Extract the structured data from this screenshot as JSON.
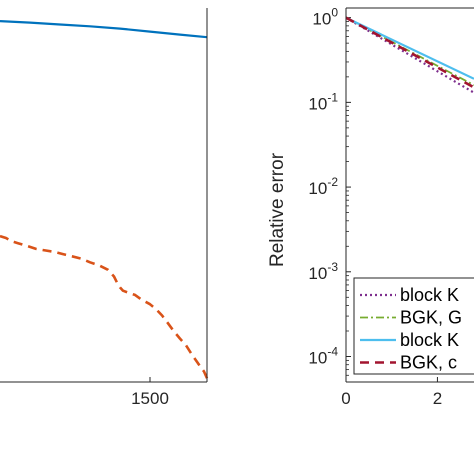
{
  "chart_data": [
    {
      "type": "line",
      "title": "",
      "xlabel": "",
      "ylabel": "",
      "xlim": [
        1000,
        1690
      ],
      "ylim": [
        0,
        1
      ],
      "xticks": [
        1500
      ],
      "xtick_labels": [
        "1500"
      ],
      "grid": false,
      "series": [
        {
          "color": "#0072BD",
          "style": "solid",
          "x": [
            1000,
            1100,
            1200,
            1300,
            1400,
            1500,
            1600,
            1690
          ],
          "y": [
            0.965,
            0.961,
            0.956,
            0.951,
            0.945,
            0.937,
            0.929,
            0.922
          ]
        },
        {
          "color": "#D95319",
          "style": "dashed",
          "x": [
            1000,
            1020,
            1040,
            1060,
            1090,
            1120,
            1150,
            1180,
            1210,
            1240,
            1270,
            1300,
            1330,
            1360,
            1380,
            1390,
            1400,
            1410,
            1430,
            1450,
            1470,
            1500,
            1520,
            1540,
            1560,
            1580,
            1600,
            1620,
            1640,
            1660,
            1680,
            1690
          ],
          "y": [
            0.39,
            0.385,
            0.376,
            0.371,
            0.364,
            0.356,
            0.352,
            0.348,
            0.342,
            0.336,
            0.33,
            0.32,
            0.312,
            0.3,
            0.282,
            0.266,
            0.253,
            0.244,
            0.238,
            0.233,
            0.221,
            0.208,
            0.195,
            0.178,
            0.157,
            0.135,
            0.116,
            0.098,
            0.073,
            0.05,
            0.028,
            0.01
          ]
        }
      ]
    },
    {
      "type": "line",
      "title": "",
      "xlabel": "",
      "ylabel": "Relative error",
      "yscale": "log",
      "xlim": [
        0,
        2.8
      ],
      "ylim": [
        5e-05,
        1.3
      ],
      "xticks": [
        0,
        2
      ],
      "xtick_labels": [
        "0",
        "2"
      ],
      "ytick_labels": [
        {
          "base": "10",
          "exp": "0"
        },
        {
          "base": "10",
          "exp": "-1"
        },
        {
          "base": "10",
          "exp": "-2"
        },
        {
          "base": "10",
          "exp": "-3"
        },
        {
          "base": "10",
          "exp": "-4"
        }
      ],
      "grid": false,
      "legend_position": "bottom-right",
      "series": [
        {
          "name": "block K",
          "color": "#7E2F8E",
          "style": "dotted",
          "x": [
            0,
            2.8
          ],
          "y": [
            1.0,
            0.13
          ]
        },
        {
          "name": "BGK, G",
          "color": "#77AC30",
          "style": "dashdot",
          "x": [
            0,
            2.8
          ],
          "y": [
            1.0,
            0.16
          ]
        },
        {
          "name": "block K",
          "color": "#4DBEEE",
          "style": "solid",
          "x": [
            0,
            2.8
          ],
          "y": [
            1.0,
            0.19
          ]
        },
        {
          "name": "BGK, c",
          "color": "#A2142F",
          "style": "dashed",
          "x": [
            0,
            2.8
          ],
          "y": [
            1.0,
            0.15
          ]
        }
      ]
    }
  ]
}
